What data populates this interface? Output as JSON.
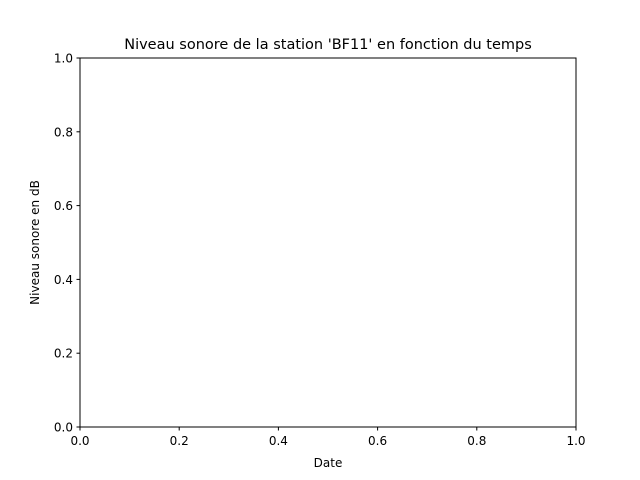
{
  "chart_data": {
    "type": "line",
    "title": "Niveau sonore de la station 'BF11' en fonction du temps",
    "xlabel": "Date",
    "ylabel": "Niveau sonore en dB",
    "xlim": [
      0.0,
      1.0
    ],
    "ylim": [
      0.0,
      1.0
    ],
    "x_ticks": [
      "0.0",
      "0.2",
      "0.4",
      "0.6",
      "0.8",
      "1.0"
    ],
    "y_ticks": [
      "0.0",
      "0.2",
      "0.4",
      "0.6",
      "0.8",
      "1.0"
    ],
    "grid": false,
    "series": []
  },
  "colors": {
    "axes": "#000000",
    "background": "#ffffff"
  }
}
